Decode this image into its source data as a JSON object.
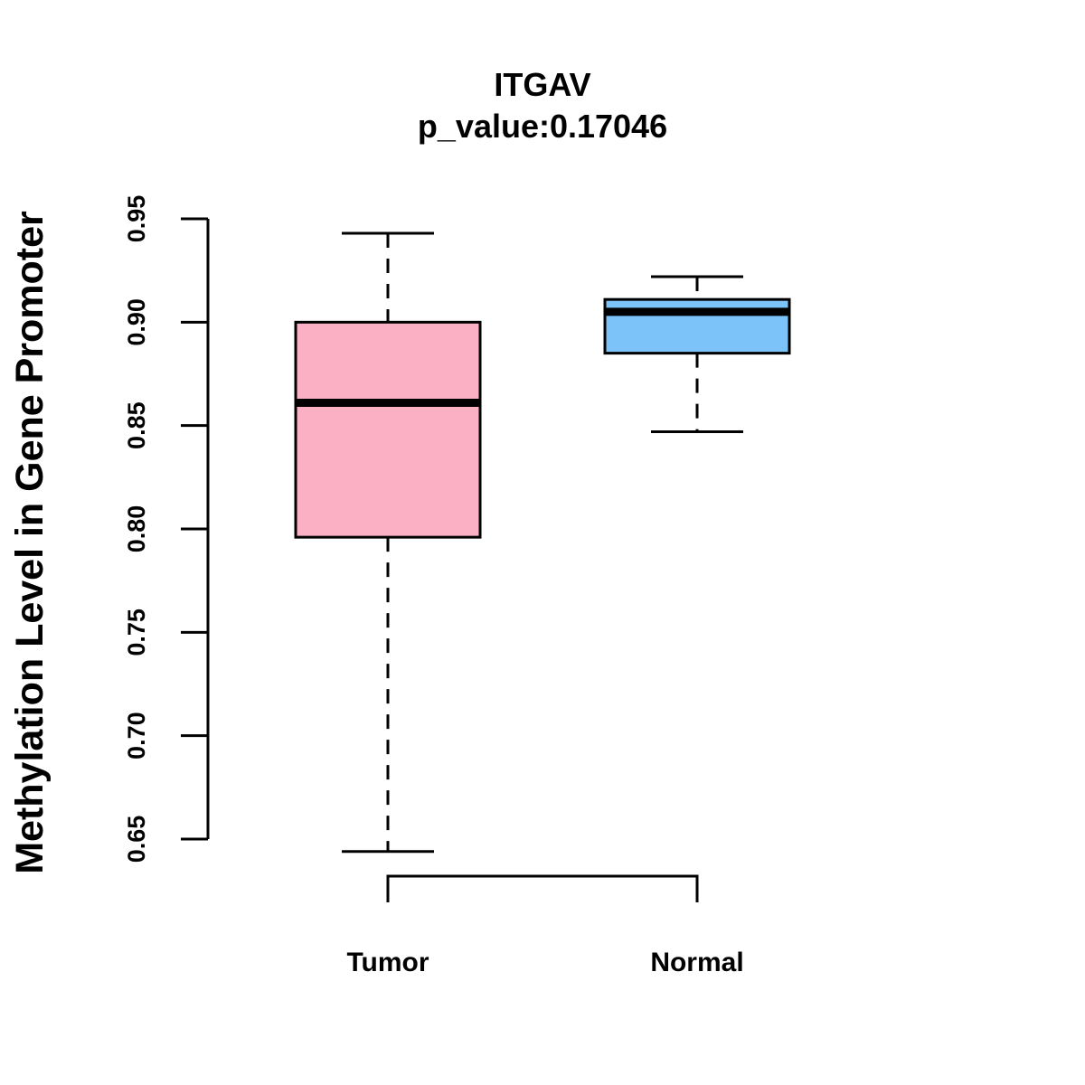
{
  "chart_data": {
    "type": "box",
    "title": "ITGAV",
    "subtitle": "p_value:0.17046",
    "xlabel": "",
    "ylabel": "Methylation Level in Gene Promoter",
    "ylim": [
      0.65,
      0.95
    ],
    "yticks": [
      "0.65",
      "0.70",
      "0.75",
      "0.80",
      "0.85",
      "0.90",
      "0.95"
    ],
    "categories": [
      "Tumor",
      "Normal"
    ],
    "boxes": [
      {
        "name": "Tumor",
        "min": 0.644,
        "q1": 0.796,
        "median": 0.861,
        "q3": 0.9,
        "max": 0.943,
        "color": "#FBB1C3"
      },
      {
        "name": "Normal",
        "min": 0.847,
        "q1": 0.885,
        "median": 0.905,
        "q3": 0.911,
        "max": 0.922,
        "color": "#7CC3F9"
      }
    ],
    "significance_bracket": {
      "from": "Tumor",
      "to": "Normal"
    },
    "grid": false,
    "legend": "none"
  }
}
